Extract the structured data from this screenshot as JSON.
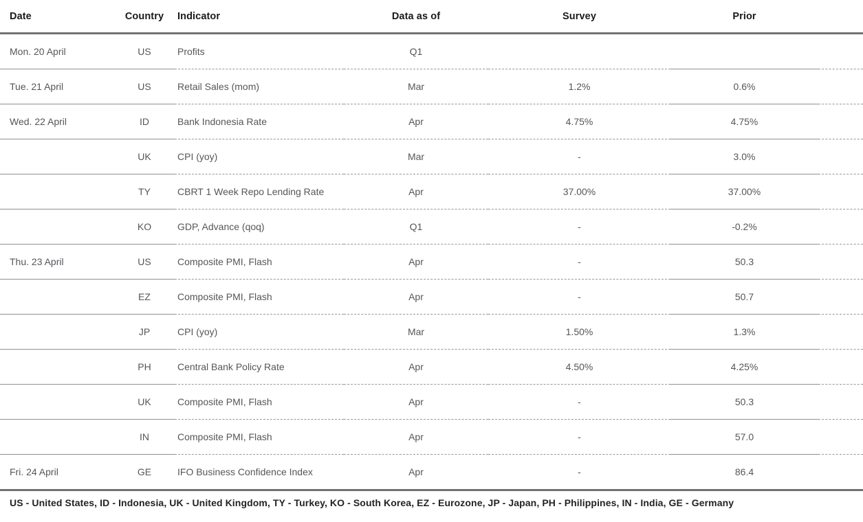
{
  "table": {
    "columns": [
      "Date",
      "Country",
      "Indicator",
      "Data as of",
      "Survey",
      "Prior"
    ],
    "rows": [
      {
        "date": "Mon. 20 April",
        "country": "US",
        "indicator": "Profits",
        "data_as_of": "Q1",
        "survey": "",
        "prior": ""
      },
      {
        "date": "Tue. 21 April",
        "country": "US",
        "indicator": "Retail Sales (mom)",
        "data_as_of": "Mar",
        "survey": "1.2%",
        "prior": "0.6%"
      },
      {
        "date": "Wed. 22 April",
        "country": "ID",
        "indicator": "Bank Indonesia Rate",
        "data_as_of": "Apr",
        "survey": "4.75%",
        "prior": "4.75%"
      },
      {
        "date": "",
        "country": "UK",
        "indicator": "CPI (yoy)",
        "data_as_of": "Mar",
        "survey": "-",
        "prior": "3.0%"
      },
      {
        "date": "",
        "country": "TY",
        "indicator": "CBRT 1 Week Repo Lending Rate",
        "data_as_of": "Apr",
        "survey": "37.00%",
        "prior": "37.00%"
      },
      {
        "date": "",
        "country": "KO",
        "indicator": "GDP, Advance (qoq)",
        "data_as_of": "Q1",
        "survey": "-",
        "prior": "-0.2%"
      },
      {
        "date": "Thu. 23 April",
        "country": "US",
        "indicator": "Composite PMI, Flash",
        "data_as_of": "Apr",
        "survey": "-",
        "prior": "50.3"
      },
      {
        "date": "",
        "country": "EZ",
        "indicator": "Composite PMI, Flash",
        "data_as_of": "Apr",
        "survey": "-",
        "prior": "50.7"
      },
      {
        "date": "",
        "country": "JP",
        "indicator": "CPI (yoy)",
        "data_as_of": "Mar",
        "survey": "1.50%",
        "prior": "1.3%"
      },
      {
        "date": "",
        "country": "PH",
        "indicator": "Central Bank Policy Rate",
        "data_as_of": "Apr",
        "survey": "4.50%",
        "prior": "4.25%"
      },
      {
        "date": "",
        "country": "UK",
        "indicator": "Composite PMI, Flash",
        "data_as_of": "Apr",
        "survey": "-",
        "prior": "50.3"
      },
      {
        "date": "",
        "country": "IN",
        "indicator": "Composite PMI, Flash",
        "data_as_of": "Apr",
        "survey": "-",
        "prior": "57.0"
      },
      {
        "date": "Fri. 24 April",
        "country": "GE",
        "indicator": "IFO Business Confidence Index",
        "data_as_of": "Apr",
        "survey": "-",
        "prior": "86.4"
      }
    ]
  },
  "footnote": "US - United States, ID - Indonesia, UK - United Kingdom, TY - Turkey, KO - South Korea, EZ - Eurozone, JP - Japan, PH - Philippines, IN - India, GE - Germany"
}
